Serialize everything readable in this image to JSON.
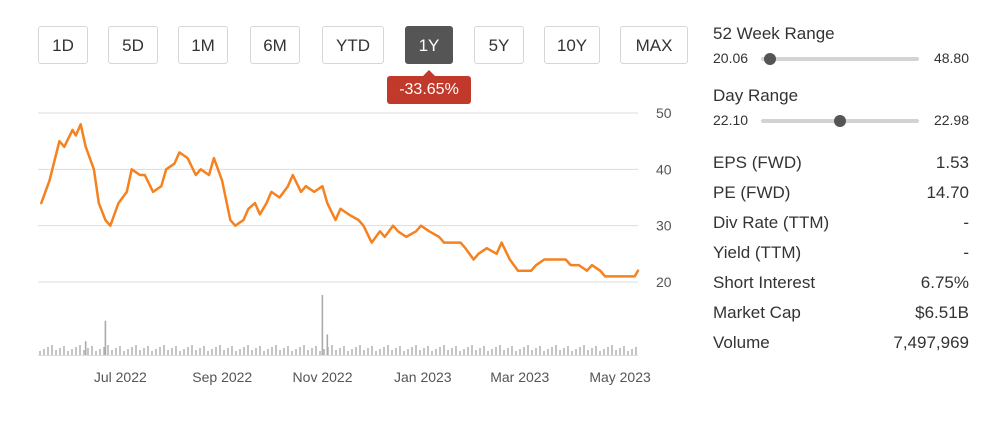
{
  "range_buttons": [
    {
      "label": "1D",
      "active": false
    },
    {
      "label": "5D",
      "active": false
    },
    {
      "label": "1M",
      "active": false
    },
    {
      "label": "6M",
      "active": false
    },
    {
      "label": "YTD",
      "active": false
    },
    {
      "label": "1Y",
      "active": true
    },
    {
      "label": "5Y",
      "active": false
    },
    {
      "label": "10Y",
      "active": false
    },
    {
      "label": "MAX",
      "active": false
    }
  ],
  "change_badge": "-33.65%",
  "colors": {
    "price_line": "#f5821f",
    "badge": "#c0392b",
    "grid": "#dddddd",
    "volume": "#aaaaaa",
    "active_button": "#555555"
  },
  "chart_data": {
    "type": "line",
    "title": "",
    "xlabel": "",
    "ylabel": "",
    "ylim": [
      20,
      50
    ],
    "yticks": [
      50,
      40,
      30,
      20
    ],
    "xtick_labels": [
      "Jul 2022",
      "Sep 2022",
      "Nov 2022",
      "Jan 2023",
      "Mar 2023",
      "May 2023"
    ],
    "grid": true,
    "series": [
      {
        "x": [
          "2022-05-20",
          "2022-05-25",
          "2022-05-31",
          "2022-06-03",
          "2022-06-08",
          "2022-06-10",
          "2022-06-13",
          "2022-06-16",
          "2022-06-21",
          "2022-06-24",
          "2022-06-28",
          "2022-07-01",
          "2022-07-06",
          "2022-07-11",
          "2022-07-14",
          "2022-07-19",
          "2022-07-22",
          "2022-07-27",
          "2022-08-01",
          "2022-08-04",
          "2022-08-09",
          "2022-08-12",
          "2022-08-17",
          "2022-08-22",
          "2022-08-25",
          "2022-08-30",
          "2022-09-02",
          "2022-09-07",
          "2022-09-12",
          "2022-09-15",
          "2022-09-20",
          "2022-09-23",
          "2022-09-27",
          "2022-09-30",
          "2022-10-04",
          "2022-10-07",
          "2022-10-12",
          "2022-10-17",
          "2022-10-20",
          "2022-10-25",
          "2022-10-28",
          "2022-11-02",
          "2022-11-07",
          "2022-11-10",
          "2022-11-15",
          "2022-11-18",
          "2022-11-23",
          "2022-11-29",
          "2022-12-02",
          "2022-12-07",
          "2022-12-12",
          "2022-12-15",
          "2022-12-20",
          "2022-12-23",
          "2022-12-28",
          "2023-01-03",
          "2023-01-06",
          "2023-01-11",
          "2023-01-17",
          "2023-01-20",
          "2023-01-25",
          "2023-01-30",
          "2023-02-02",
          "2023-02-07",
          "2023-02-10",
          "2023-02-15",
          "2023-02-21",
          "2023-02-24",
          "2023-03-01",
          "2023-03-06",
          "2023-03-09",
          "2023-03-14",
          "2023-03-17",
          "2023-03-22",
          "2023-03-27",
          "2023-03-30",
          "2023-04-04",
          "2023-04-07",
          "2023-04-12",
          "2023-04-17",
          "2023-04-20",
          "2023-04-25",
          "2023-04-28",
          "2023-05-03",
          "2023-05-08",
          "2023-05-11",
          "2023-05-16",
          "2023-05-18"
        ],
        "y": [
          34,
          38,
          45,
          44,
          47,
          46,
          48,
          44,
          40,
          34,
          31,
          30,
          34,
          36,
          40,
          39,
          39,
          36,
          37,
          40,
          41,
          43,
          42,
          39,
          40,
          39,
          42,
          38,
          31,
          30,
          31,
          33,
          34,
          32,
          34,
          36,
          35,
          37,
          39,
          36,
          37,
          36,
          37,
          34,
          31,
          33,
          32,
          31,
          30,
          27,
          29,
          28,
          30,
          29,
          28,
          29,
          30,
          29,
          28,
          27,
          27,
          27,
          26,
          24,
          25,
          26,
          25,
          27,
          24,
          22,
          22,
          22,
          23,
          24,
          24,
          24,
          24,
          23,
          23,
          22,
          23,
          22,
          21,
          21,
          21,
          21,
          21,
          22
        ]
      }
    ],
    "volume_series": {
      "x": [
        "2022-06-16",
        "2022-06-28",
        "2022-11-07",
        "2022-11-10"
      ],
      "values": [
        8,
        20,
        35,
        12
      ]
    }
  },
  "stats": {
    "week52": {
      "title": "52 Week Range",
      "low": "20.06",
      "high": "48.80",
      "position": 0.06
    },
    "day": {
      "title": "Day Range",
      "low": "22.10",
      "high": "22.98",
      "position": 0.5
    },
    "rows": [
      {
        "label": "EPS (FWD)",
        "value": "1.53"
      },
      {
        "label": "PE (FWD)",
        "value": "14.70"
      },
      {
        "label": "Div Rate (TTM)",
        "value": "-"
      },
      {
        "label": "Yield (TTM)",
        "value": "-"
      },
      {
        "label": "Short Interest",
        "value": "6.75%"
      },
      {
        "label": "Market Cap",
        "value": "$6.51B"
      },
      {
        "label": "Volume",
        "value": "7,497,969"
      }
    ]
  }
}
